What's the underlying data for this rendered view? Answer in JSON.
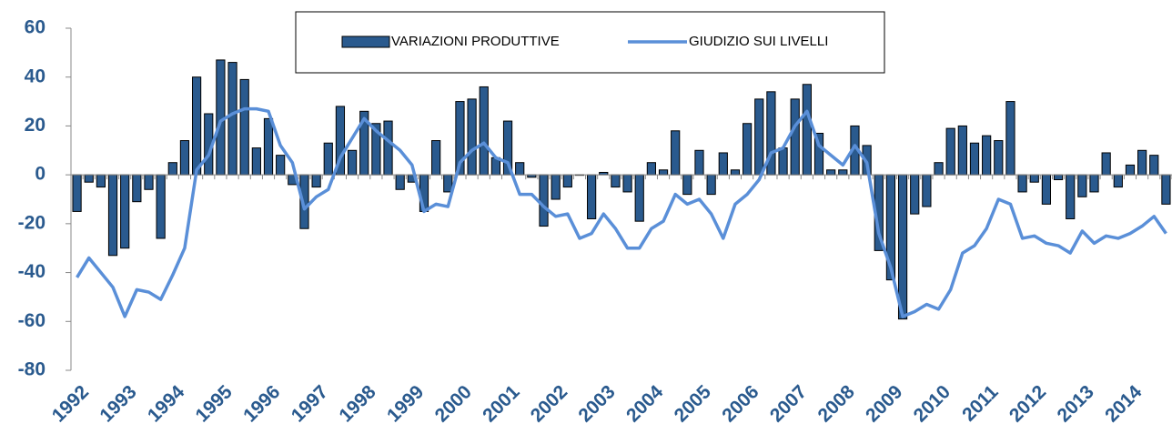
{
  "chart_data": {
    "type": "bar-line",
    "categories": [
      "1992",
      null,
      null,
      null,
      "1993",
      null,
      null,
      null,
      "1994",
      null,
      null,
      null,
      "1995",
      null,
      null,
      null,
      "1996",
      null,
      null,
      null,
      "1997",
      null,
      null,
      null,
      "1998",
      null,
      null,
      null,
      "1999",
      null,
      null,
      null,
      "2000",
      null,
      null,
      null,
      "2001",
      null,
      null,
      null,
      "2002",
      null,
      null,
      null,
      "2003",
      null,
      null,
      null,
      "2004",
      null,
      null,
      null,
      "2005",
      null,
      null,
      null,
      "2006",
      null,
      null,
      null,
      "2007",
      null,
      null,
      null,
      "2008",
      null,
      null,
      null,
      "2009",
      null,
      null,
      null,
      "2010",
      null,
      null,
      null,
      "2011",
      null,
      null,
      null,
      "2012",
      null,
      null,
      null,
      "2013",
      null,
      null,
      null,
      "2014",
      null,
      null,
      null
    ],
    "series": [
      {
        "name": "VARIAZIONI PRODUTTIVE",
        "type": "bar",
        "color": "#2a5a8e",
        "values": [
          -15,
          -3,
          -5,
          -33,
          -30,
          -11,
          -6,
          -26,
          5,
          14,
          40,
          25,
          47,
          46,
          39,
          11,
          23,
          8,
          -4,
          -22,
          -5,
          13,
          28,
          10,
          26,
          21,
          22,
          -6,
          -3,
          -15,
          14,
          -7,
          30,
          31,
          36,
          7,
          22,
          5,
          -1,
          -21,
          -10,
          -5,
          0,
          -18,
          1,
          -5,
          -7,
          -19,
          5,
          2,
          18,
          -8,
          10,
          -8,
          9,
          2,
          21,
          31,
          34,
          11,
          31,
          37,
          17,
          2,
          2,
          20,
          12,
          -31,
          -43,
          -59,
          -16,
          -13,
          5,
          19,
          20,
          13,
          16,
          14,
          30,
          -7,
          -3,
          -12,
          -2,
          -18,
          -9,
          -7,
          9,
          -5,
          4,
          10,
          8,
          -12
        ]
      },
      {
        "name": "GIUDIZIO SUI LIVELLI",
        "type": "line",
        "color": "#5a8fd8",
        "values": [
          -42,
          -34,
          -40,
          -46,
          -58,
          -47,
          -48,
          -51,
          -41,
          -30,
          2,
          8,
          22,
          25,
          27,
          27,
          26,
          12,
          5,
          -14,
          -9,
          -6,
          7,
          15,
          23,
          18,
          14,
          10,
          4,
          -15,
          -12,
          -13,
          5,
          10,
          13,
          7,
          5,
          -8,
          -8,
          -13,
          -17,
          -16,
          -26,
          -24,
          -16,
          -22,
          -30,
          -30,
          -22,
          -19,
          -8,
          -12,
          -10,
          -16,
          -26,
          -12,
          -8,
          -2,
          9,
          11,
          20,
          26,
          12,
          8,
          4,
          12,
          5,
          -24,
          -38,
          -58,
          -56,
          -53,
          -55,
          -47,
          -32,
          -29,
          -22,
          -10,
          -12,
          -26,
          -25,
          -28,
          -29,
          -32,
          -23,
          -28,
          -25,
          -26,
          -24,
          -21,
          -17,
          -24
        ]
      }
    ],
    "ylim": [
      -80,
      60
    ],
    "yticks": [
      -80,
      -60,
      -40,
      -20,
      0,
      20,
      40,
      60
    ]
  }
}
